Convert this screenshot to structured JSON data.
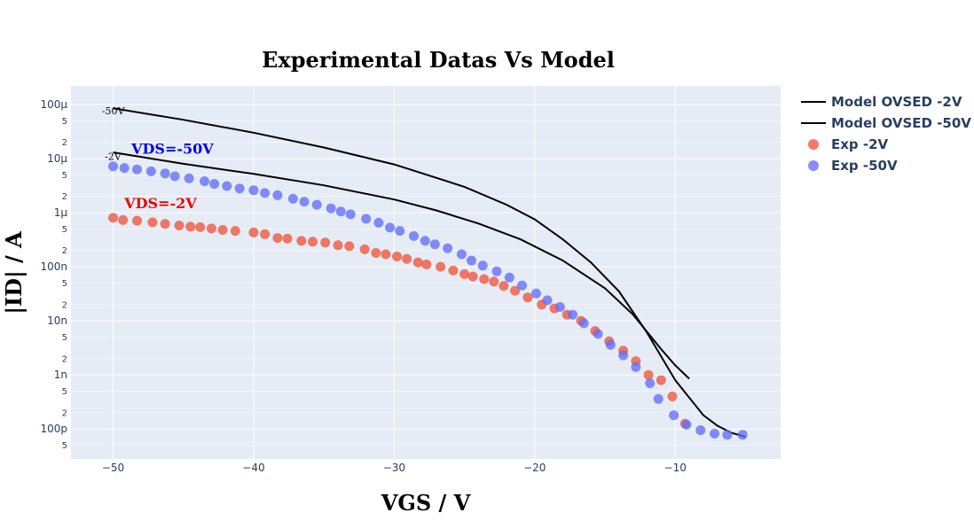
{
  "chart_data": {
    "type": "scatter",
    "title": "Experimental Datas Vs Model",
    "xlabel": "VGS / V",
    "ylabel": "|ID| / A",
    "xlim": [
      -53,
      -2.5
    ],
    "ylim": [
      2.8e-11,
      0.00022
    ],
    "yscale": "log",
    "grid": true,
    "legend_position": "top-right",
    "x_ticks": [
      {
        "value": -50,
        "label": "−50"
      },
      {
        "value": -40,
        "label": "−40"
      },
      {
        "value": -30,
        "label": "−30"
      },
      {
        "value": -20,
        "label": "−20"
      },
      {
        "value": -10,
        "label": "−10"
      }
    ],
    "y_major_ticks": [
      {
        "value": 0.0001,
        "label": "100μ"
      },
      {
        "value": 1e-05,
        "label": "10μ"
      },
      {
        "value": 1e-06,
        "label": "1μ"
      },
      {
        "value": 1e-07,
        "label": "100n"
      },
      {
        "value": 1e-08,
        "label": "10n"
      },
      {
        "value": 1e-09,
        "label": "1n"
      },
      {
        "value": 1e-10,
        "label": "100p"
      }
    ],
    "y_minor_ticks": [
      {
        "value": 5e-05,
        "label": "5"
      },
      {
        "value": 2e-05,
        "label": "2"
      },
      {
        "value": 5e-06,
        "label": "5"
      },
      {
        "value": 2e-06,
        "label": "2"
      },
      {
        "value": 5e-07,
        "label": "5"
      },
      {
        "value": 2e-07,
        "label": "2"
      },
      {
        "value": 5e-08,
        "label": "5"
      },
      {
        "value": 2e-08,
        "label": "2"
      },
      {
        "value": 5e-09,
        "label": "5"
      },
      {
        "value": 2e-09,
        "label": "2"
      },
      {
        "value": 5e-10,
        "label": "5"
      },
      {
        "value": 2e-10,
        "label": "2"
      },
      {
        "value": 5e-11,
        "label": "5"
      }
    ],
    "series": [
      {
        "name": "Model OVSED -2V",
        "mode": "line",
        "color": "#000000",
        "x": [
          -50,
          -45,
          -40,
          -35,
          -30,
          -27,
          -24,
          -21,
          -18,
          -15,
          -13,
          -11,
          -10,
          -9
        ],
        "y": [
          1.3e-05,
          8e-06,
          5.2e-06,
          3.2e-06,
          1.75e-06,
          1.1e-06,
          6.3e-07,
          3.2e-07,
          1.3e-07,
          4e-08,
          1.3e-08,
          3e-09,
          1.5e-09,
          8.5e-10
        ]
      },
      {
        "name": "Model OVSED -50V",
        "mode": "line",
        "color": "#000000",
        "x": [
          -50,
          -45,
          -40,
          -35,
          -30,
          -25,
          -22,
          -20,
          -18,
          -16,
          -14,
          -12,
          -10,
          -8,
          -7,
          -6,
          -5
        ],
        "y": [
          8.5e-05,
          5.2e-05,
          3e-05,
          1.6e-05,
          7.8e-06,
          3e-06,
          1.4e-06,
          7.5e-07,
          3.2e-07,
          1.2e-07,
          3.5e-08,
          6e-09,
          8e-10,
          1.8e-10,
          1.15e-10,
          8.5e-11,
          7.2e-11
        ]
      },
      {
        "name": "Exp  -2V",
        "mode": "markers",
        "color": "#ef553b",
        "x": [
          -50,
          -49.3,
          -48.3,
          -47.2,
          -46.3,
          -45.3,
          -44.5,
          -43.8,
          -43,
          -42.2,
          -41.3,
          -40,
          -39.2,
          -38.3,
          -37.6,
          -36.6,
          -35.8,
          -34.9,
          -34,
          -33.2,
          -32.1,
          -31.3,
          -30.6,
          -29.8,
          -29.1,
          -28.3,
          -27.7,
          -26.7,
          -25.8,
          -25,
          -24.4,
          -23.6,
          -22.9,
          -22.2,
          -21.4,
          -20.5,
          -19.5,
          -18.6,
          -17.7,
          -16.7,
          -15.7,
          -14.7,
          -13.7,
          -12.8,
          -11.9,
          -11,
          -10.2,
          -9.3
        ],
        "y": [
          8e-07,
          7.3e-07,
          7.1e-07,
          6.6e-07,
          6.2e-07,
          5.8e-07,
          5.5e-07,
          5.4e-07,
          5.1e-07,
          4.8e-07,
          4.6e-07,
          4.3e-07,
          4e-07,
          3.4e-07,
          3.3e-07,
          3e-07,
          2.9e-07,
          2.8e-07,
          2.5e-07,
          2.4e-07,
          2.1e-07,
          1.8e-07,
          1.7e-07,
          1.55e-07,
          1.4e-07,
          1.2e-07,
          1.1e-07,
          1e-07,
          8.5e-08,
          7.3e-08,
          6.6e-08,
          5.9e-08,
          5.3e-08,
          4.4e-08,
          3.6e-08,
          2.7e-08,
          2e-08,
          1.7e-08,
          1.3e-08,
          1e-08,
          6.5e-09,
          4.2e-09,
          2.8e-09,
          1.8e-09,
          1e-09,
          8e-10,
          4e-10,
          1.25e-10
        ]
      },
      {
        "name": "Exp  -50V",
        "mode": "markers",
        "color": "#636efa",
        "x": [
          -50,
          -49.2,
          -48.3,
          -47.3,
          -46.3,
          -45.6,
          -44.6,
          -43.5,
          -42.8,
          -41.9,
          -41,
          -40,
          -39.2,
          -38.3,
          -37.2,
          -36.4,
          -35.5,
          -34.5,
          -33.8,
          -33.1,
          -32,
          -31.1,
          -30.3,
          -29.6,
          -28.6,
          -27.8,
          -27.1,
          -26.2,
          -25.2,
          -24.5,
          -23.7,
          -22.7,
          -21.8,
          -20.9,
          -19.9,
          -19.1,
          -18.2,
          -17.3,
          -16.5,
          -15.5,
          -14.6,
          -13.7,
          -12.8,
          -11.8,
          -11.2,
          -10.1,
          -9.2,
          -8.2,
          -7.2,
          -6.3,
          -5.2
        ],
        "y": [
          7.2e-06,
          6.7e-06,
          6.3e-06,
          5.8e-06,
          5.3e-06,
          4.7e-06,
          4.3e-06,
          3.8e-06,
          3.4e-06,
          3.1e-06,
          2.8e-06,
          2.6e-06,
          2.3e-06,
          2.1e-06,
          1.8e-06,
          1.6e-06,
          1.4e-06,
          1.2e-06,
          1.05e-06,
          9.3e-07,
          7.7e-07,
          6.5e-07,
          5.3e-07,
          4.6e-07,
          3.7e-07,
          3e-07,
          2.6e-07,
          2.2e-07,
          1.7e-07,
          1.3e-07,
          1.05e-07,
          8.2e-08,
          6.3e-08,
          4.5e-08,
          3.2e-08,
          2.4e-08,
          1.8e-08,
          1.3e-08,
          9e-09,
          5.7e-09,
          3.6e-09,
          2.3e-09,
          1.4e-09,
          7e-10,
          3.6e-10,
          1.8e-10,
          1.2e-10,
          9.5e-11,
          8.2e-11,
          7.8e-11,
          7.8e-11
        ]
      }
    ],
    "annotations": [
      {
        "text": "VDS=-50V",
        "x": -48.7,
        "y": 1.22e-05,
        "style": "blue"
      },
      {
        "text": "VDS=-2V",
        "x": -49.2,
        "y": 1.2e-06,
        "style": "red"
      },
      {
        "text": "-50V",
        "x": -50.8,
        "y": 6.6e-05,
        "style": "small"
      },
      {
        "text": "-2V",
        "x": -50.6,
        "y": 9.4e-06,
        "style": "small"
      }
    ]
  }
}
